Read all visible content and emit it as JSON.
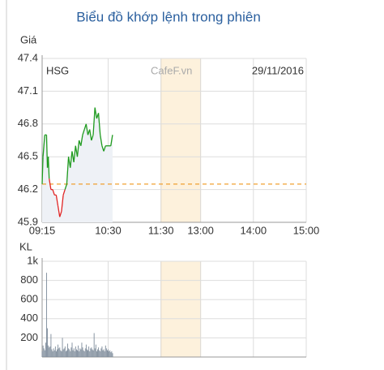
{
  "chart_data": [
    {
      "type": "line",
      "title": "Biểu đồ khớp lệnh trong phiên",
      "y_label": "Giá",
      "symbol": "HSG",
      "watermark": "CafeF.vn",
      "date": "29/11/2016",
      "x": [
        555,
        556,
        558,
        560,
        561,
        562,
        563,
        565,
        567,
        569,
        571,
        573,
        575,
        577,
        579,
        581,
        583,
        585,
        587,
        589,
        591,
        593,
        595,
        597,
        599,
        601,
        603,
        605,
        607,
        609,
        611,
        613,
        615,
        617,
        619,
        621,
        623,
        625,
        627,
        630,
        633,
        635
      ],
      "values": [
        46.25,
        46.5,
        46.7,
        46.7,
        46.4,
        46.5,
        46.3,
        46.2,
        46.2,
        46.15,
        46.15,
        46.05,
        45.95,
        46.0,
        46.15,
        46.2,
        46.25,
        46.5,
        46.4,
        46.55,
        46.45,
        46.6,
        46.5,
        46.65,
        46.6,
        46.7,
        46.75,
        46.8,
        46.7,
        46.75,
        46.65,
        46.7,
        46.95,
        46.85,
        46.9,
        46.7,
        46.6,
        46.55,
        46.6,
        46.6,
        46.6,
        46.7
      ],
      "reference": 46.25,
      "up_color": "#1e9a1e",
      "down_color": "#e02424",
      "reference_color": "#f0a030",
      "area_color": "#eef1f6",
      "session_break": [
        690,
        780
      ],
      "break_color": "#fdf1dc",
      "xlim": [
        555,
        900
      ],
      "xticks": [
        {
          "value": 555,
          "label": "09:15"
        },
        {
          "value": 630,
          "label": "10:30"
        },
        {
          "value": 690,
          "label": "11:30"
        },
        {
          "value": 780,
          "label": "13:00"
        },
        {
          "value": 840,
          "label": "14:00"
        },
        {
          "value": 900,
          "label": "15:00"
        }
      ],
      "ylim": [
        45.9,
        47.4
      ],
      "yticks": [
        45.9,
        46.2,
        46.5,
        46.8,
        47.1,
        47.4
      ],
      "grid": true
    },
    {
      "type": "bar",
      "y_label": "KL",
      "color": "#7d8b9a",
      "x": [
        555,
        556,
        557,
        558,
        559,
        560,
        561,
        562,
        563,
        564,
        565,
        566,
        567,
        568,
        569,
        570,
        571,
        572,
        573,
        574,
        575,
        576,
        577,
        578,
        579,
        580,
        581,
        582,
        583,
        584,
        585,
        586,
        587,
        588,
        589,
        590,
        591,
        592,
        593,
        594,
        595,
        596,
        597,
        598,
        599,
        600,
        601,
        602,
        603,
        604,
        605,
        606,
        607,
        608,
        609,
        610,
        611,
        612,
        613,
        614,
        615,
        616,
        617,
        618,
        619,
        620,
        621,
        622,
        623,
        624,
        625,
        626,
        627,
        628,
        629,
        630,
        631,
        632,
        633,
        634,
        635
      ],
      "values": [
        60,
        120,
        90,
        70,
        150,
        880,
        300,
        120,
        100,
        110,
        240,
        80,
        60,
        90,
        70,
        110,
        60,
        80,
        130,
        90,
        100,
        70,
        60,
        200,
        80,
        90,
        110,
        60,
        70,
        140,
        90,
        80,
        60,
        100,
        150,
        70,
        90,
        60,
        110,
        80,
        70,
        120,
        60,
        90,
        80,
        150,
        100,
        70,
        60,
        90,
        130,
        80,
        70,
        110,
        60,
        90,
        100,
        80,
        70,
        250,
        90,
        130,
        60,
        80,
        100,
        70,
        60,
        90,
        110,
        70,
        80,
        60,
        120,
        90,
        70,
        80,
        60,
        70,
        50,
        60,
        40
      ],
      "ylim": [
        0,
        1000
      ],
      "yticks": [
        200,
        400,
        600,
        800,
        {
          "value": 1000,
          "label": "1k"
        }
      ],
      "grid": true
    }
  ]
}
